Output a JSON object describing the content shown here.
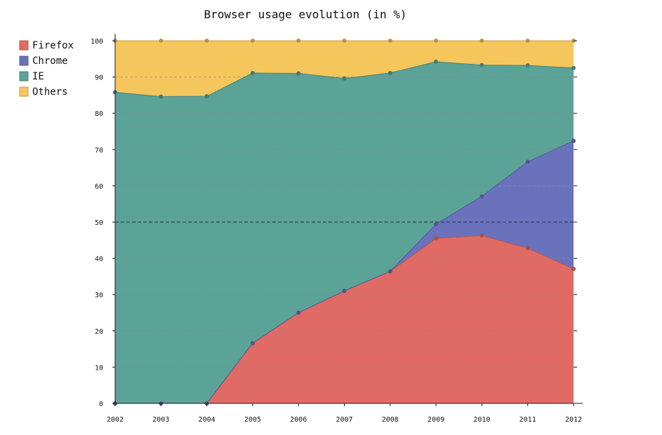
{
  "chart_data": {
    "type": "area",
    "stacked": true,
    "title": "Browser usage evolution (in %)",
    "x": [
      "2002",
      "2003",
      "2004",
      "2005",
      "2006",
      "2007",
      "2008",
      "2009",
      "2010",
      "2011",
      "2012"
    ],
    "series": [
      {
        "name": "Firefox",
        "color": "#e06b64",
        "values": [
          0,
          0,
          0,
          16.6,
          25,
          31,
          36.4,
          45.5,
          46.3,
          42.8,
          37.1
        ]
      },
      {
        "name": "Chrome",
        "color": "#6a72be",
        "values": [
          0,
          0,
          0,
          0,
          0,
          0,
          0,
          3.9,
          10.8,
          23.8,
          35.3
        ]
      },
      {
        "name": "IE",
        "color": "#5ba297",
        "values": [
          85.8,
          84.6,
          84.7,
          74.5,
          66,
          58.6,
          54.7,
          44.8,
          36.2,
          26.6,
          20.1
        ]
      },
      {
        "name": "Others",
        "color": "#f5c65c",
        "values": [
          14.2,
          15.4,
          15.3,
          8.9,
          9,
          10.4,
          8.9,
          5.8,
          6.7,
          6.8,
          7.5
        ]
      }
    ],
    "yticks": [
      "0",
      "10",
      "20",
      "30",
      "40",
      "50",
      "60",
      "70",
      "80",
      "90",
      "100"
    ],
    "ylim": [
      0,
      100
    ],
    "grid": true,
    "legend": "top-left"
  }
}
